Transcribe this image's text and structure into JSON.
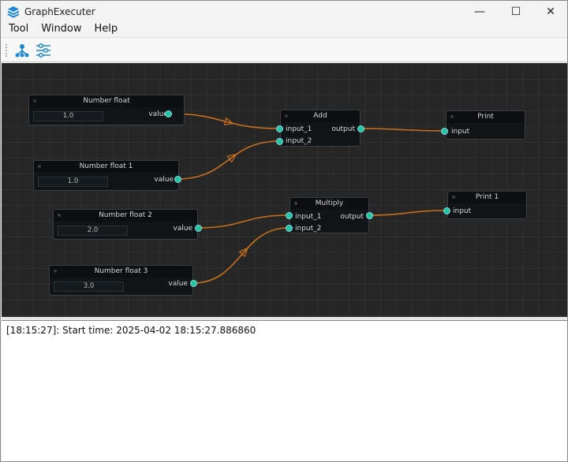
{
  "window": {
    "title": "GraphExecuter",
    "minimize": "—",
    "maximize": "☐",
    "close": "✕"
  },
  "menu": [
    "Tool",
    "Window",
    "Help"
  ],
  "toolbar": {
    "buttons": [
      {
        "icon": "graph-tree-icon"
      },
      {
        "icon": "sliders-icon"
      }
    ],
    "accent": "#1e88d6"
  },
  "nodes": {
    "nf0": {
      "title": "Number float",
      "value": "1.0",
      "port": "value"
    },
    "nf1": {
      "title": "Number float 1",
      "value": "1.0",
      "port": "value"
    },
    "nf2": {
      "title": "Number float 2",
      "value": "2.0",
      "port": "value"
    },
    "nf3": {
      "title": "Number float 3",
      "value": "3.0",
      "port": "value"
    },
    "add": {
      "title": "Add",
      "in1": "input_1",
      "in2": "input_2",
      "out": "output"
    },
    "mul": {
      "title": "Multiply",
      "in1": "input_1",
      "in2": "input_2",
      "out": "output"
    },
    "print": {
      "title": "Print",
      "in": "input"
    },
    "print1": {
      "title": "Print 1",
      "in": "input"
    }
  },
  "edge_color": "#c8701e",
  "log": {
    "lines": [
      "[18:15:27]: Start time: 2025-04-02 18:15:27.886860"
    ]
  }
}
